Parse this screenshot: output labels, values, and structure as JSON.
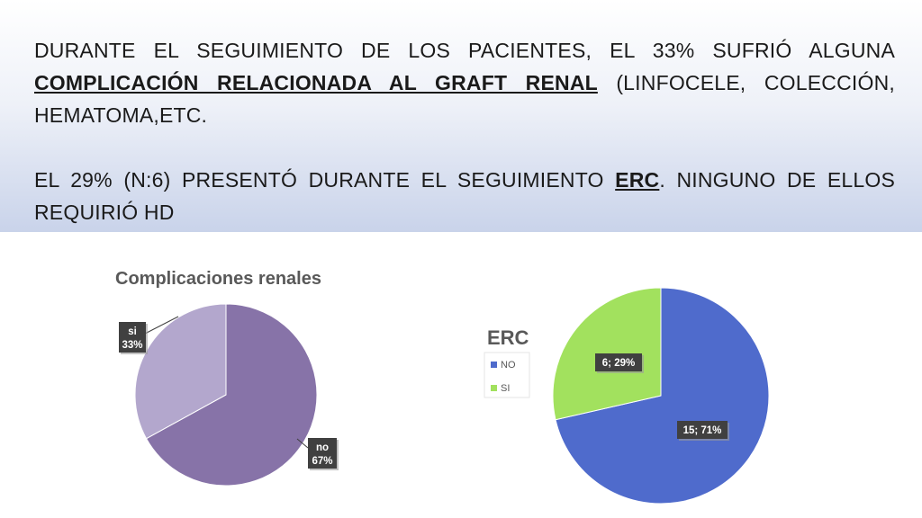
{
  "header": {
    "para1": {
      "part1": "DURANTE EL SEGUIMIENTO DE LOS PACIENTES, EL 33% SUFRIÓ ALGUNA ",
      "bold": "COMPLICACIÓN RELACIONADA AL GRAFT RENAL",
      "part2": " (LINFOCELE, COLECCIÓN, HEMATOMA,ETC."
    },
    "para2": {
      "part1": "EL 29% (N:6) PRESENTÓ DURANTE EL SEGUIMIENTO ",
      "bold": "ERC",
      "part2": ". NINGUNO DE ELLOS REQUIRIÓ HD"
    }
  },
  "chart_data": [
    {
      "type": "pie",
      "title": "Complicaciones renales",
      "categories": [
        "no",
        "si"
      ],
      "values": [
        67,
        33
      ],
      "labels": [
        [
          "no",
          "67%"
        ],
        [
          "si",
          "33%"
        ]
      ],
      "colors": [
        "#8773a8",
        "#b3a7cd"
      ],
      "legend": "none"
    },
    {
      "type": "pie",
      "title": "ERC",
      "categories": [
        "NO",
        "SI"
      ],
      "values": [
        15,
        6
      ],
      "percentages": [
        71,
        29
      ],
      "labels": [
        "15; 71%",
        "6; 29%"
      ],
      "colors": [
        "#4f6bcc",
        "#a2e15e"
      ],
      "legend": "left"
    }
  ]
}
